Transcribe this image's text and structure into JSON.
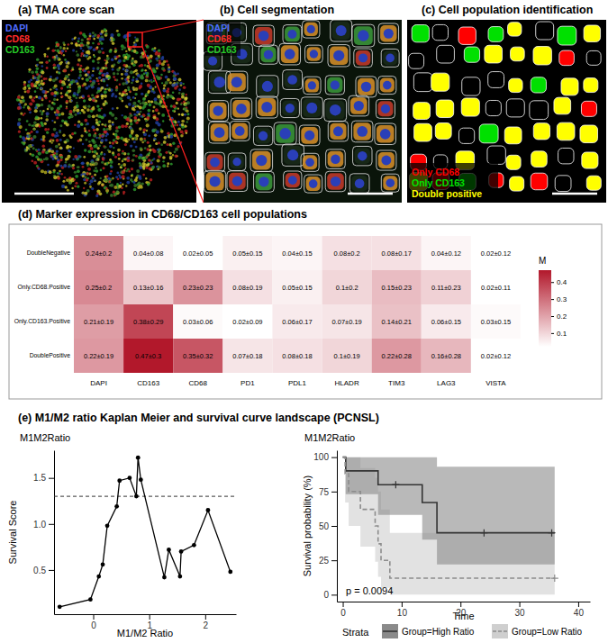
{
  "figure": {
    "images": [
      {
        "title": "(a) TMA core scan",
        "channels": [
          {
            "name": "DAPI",
            "color": "#4f6dff"
          },
          {
            "name": "CD68",
            "color": "#ff2a2a"
          },
          {
            "name": "CD163",
            "color": "#27c927"
          }
        ]
      },
      {
        "title": "(b) Cell segmentation",
        "channels": [
          {
            "name": "DAPI",
            "color": "#4f6dff"
          },
          {
            "name": "CD68",
            "color": "#ff2a2a"
          },
          {
            "name": "CD163",
            "color": "#27c927"
          }
        ]
      },
      {
        "title": "(c) Cell population identification",
        "legend": [
          {
            "name": "Only CD68",
            "color": "#ff0000"
          },
          {
            "name": "Only CD163",
            "color": "#00e000"
          },
          {
            "name": "Double positive",
            "color": "#ffff00"
          }
        ]
      }
    ],
    "section_title": "(e) M1/M2 ratio Kaplan Meier and survival curve landscape (PCNSL)"
  },
  "chart_data": [
    {
      "type": "heatmap",
      "title": "(d) Marker expression in CD68/CD163 cell populations",
      "x_categories": [
        "DAPI",
        "CD163",
        "CD68",
        "PD1",
        "PDL1",
        "HLADR",
        "TIM3",
        "LAG3",
        "VISTA"
      ],
      "y_categories": [
        "DoubleNegative",
        "Only.CD68.Positive",
        "Only.CD163.Positive",
        "DoublePositive"
      ],
      "values": [
        [
          0.24,
          0.04,
          0.02,
          0.05,
          0.04,
          0.08,
          0.08,
          0.04,
          0.02
        ],
        [
          0.25,
          0.13,
          0.23,
          0.08,
          0.05,
          0.1,
          0.15,
          0.11,
          0.02
        ],
        [
          0.21,
          0.38,
          0.03,
          0.02,
          0.06,
          0.07,
          0.14,
          0.06,
          0.03
        ],
        [
          0.22,
          0.47,
          0.35,
          0.07,
          0.08,
          0.1,
          0.22,
          0.16,
          0.02
        ]
      ],
      "errors": [
        [
          0.2,
          0.08,
          0.05,
          0.15,
          0.15,
          0.2,
          0.17,
          0.12,
          0.12
        ],
        [
          0.2,
          0.16,
          0.23,
          0.19,
          0.15,
          0.2,
          0.23,
          0.23,
          0.11
        ],
        [
          0.19,
          0.29,
          0.06,
          0.09,
          0.17,
          0.19,
          0.21,
          0.15,
          0.15
        ],
        [
          0.19,
          0.3,
          0.32,
          0.18,
          0.18,
          0.19,
          0.28,
          0.28,
          0.12
        ]
      ],
      "value_labels": [
        [
          "0.24±0.2",
          "0.04±0.08",
          "0.02±0.05",
          "0.05±0.15",
          "0.04±0.15",
          "0.08±0.2",
          "0.08±0.17",
          "0.04±0.12",
          "0.02±0.12"
        ],
        [
          "0.25±0.2",
          "0.13±0.16",
          "0.23±0.23",
          "0.08±0.19",
          "0.05±0.15",
          "0.1±0.2",
          "0.15±0.23",
          "0.11±0.23",
          "0.02±0.11"
        ],
        [
          "0.21±0.19",
          "0.38±0.29",
          "0.03±0.06",
          "0.02±0.09",
          "0.06±0.17",
          "0.07±0.19",
          "0.14±0.21",
          "0.06±0.15",
          "0.03±0.15"
        ],
        [
          "0.22±0.19",
          "0.47±0.3",
          "0.35±0.32",
          "0.07±0.18",
          "0.08±0.18",
          "0.1±0.19",
          "0.22±0.28",
          "0.16±0.28",
          "0.02±0.12"
        ]
      ],
      "data_labels": true,
      "colorbar": {
        "title": "M",
        "range": [
          0.02,
          0.47
        ],
        "ticks": [
          0.1,
          0.2,
          0.3,
          0.4
        ],
        "colors": [
          "#ffffff",
          "#b2182b"
        ]
      }
    },
    {
      "type": "line",
      "title": "M1M2Ratio",
      "x_label": "M1/M2 Ratio",
      "y_label": "Survival Score",
      "x": [
        -0.6,
        -0.05,
        0.1,
        0.17,
        0.25,
        0.42,
        0.47,
        0.65,
        0.77,
        0.8,
        0.85,
        1.27,
        1.35,
        1.55,
        1.57,
        1.8,
        2.05,
        2.45
      ],
      "values": [
        0.1,
        0.18,
        0.43,
        0.56,
        0.98,
        1.19,
        1.47,
        1.5,
        1.3,
        1.72,
        1.48,
        0.42,
        0.72,
        0.43,
        0.7,
        0.77,
        1.15,
        0.48
      ],
      "xlim": [
        -0.7,
        2.55
      ],
      "ylim": [
        0.02,
        1.8
      ],
      "xticks": [
        0,
        1,
        2
      ],
      "yticks": [
        0.5,
        {
          "value": 1,
          "label": "1.0"
        },
        1.5
      ],
      "color": "#000000",
      "marker": "circle",
      "reference_line": {
        "y": 1.3,
        "line_style": "dashed"
      }
    },
    {
      "type": "step",
      "title": "M1M2Ratio",
      "x_label": "Time",
      "y_label": "Survival probability (%)",
      "xlim": [
        -1,
        42
      ],
      "ylim": [
        -5,
        105
      ],
      "xticks": [
        0,
        10,
        20,
        30,
        40
      ],
      "yticks": [
        0,
        25,
        50,
        75,
        100
      ],
      "annotation": "p = 0.0094",
      "legend_title": "Strata",
      "legend": "bottom",
      "series": [
        {
          "name": "Group=High Ratio",
          "color": "#333333",
          "line_style": "solid",
          "band_color": "#8a8a8a",
          "x": [
            0,
            0.5,
            6,
            13.5,
            16,
            36
          ],
          "values": [
            100,
            90,
            80,
            67,
            45,
            45
          ],
          "lower": [
            100,
            73,
            58,
            40,
            22,
            22
          ],
          "upper": [
            100,
            100,
            100,
            100,
            93,
            93
          ],
          "censored_x": [
            9,
            24,
            35.5
          ],
          "censored_values": [
            80,
            45,
            45
          ]
        },
        {
          "name": "Group=Low Ratio",
          "color": "#8c8c8c",
          "line_style": "dashed",
          "band_color": "#cfcfcf",
          "x": [
            0,
            0.4,
            1,
            3,
            5.5,
            6,
            6.5,
            8,
            36
          ],
          "values": [
            100,
            88,
            75,
            62,
            50,
            37,
            25,
            12,
            12
          ],
          "lower": [
            100,
            67,
            50,
            35,
            24,
            13,
            5,
            0,
            0
          ],
          "upper": [
            100,
            100,
            100,
            92,
            85,
            75,
            62,
            45,
            45
          ],
          "censored_x": [
            36
          ],
          "censored_values": [
            12
          ]
        }
      ]
    }
  ]
}
